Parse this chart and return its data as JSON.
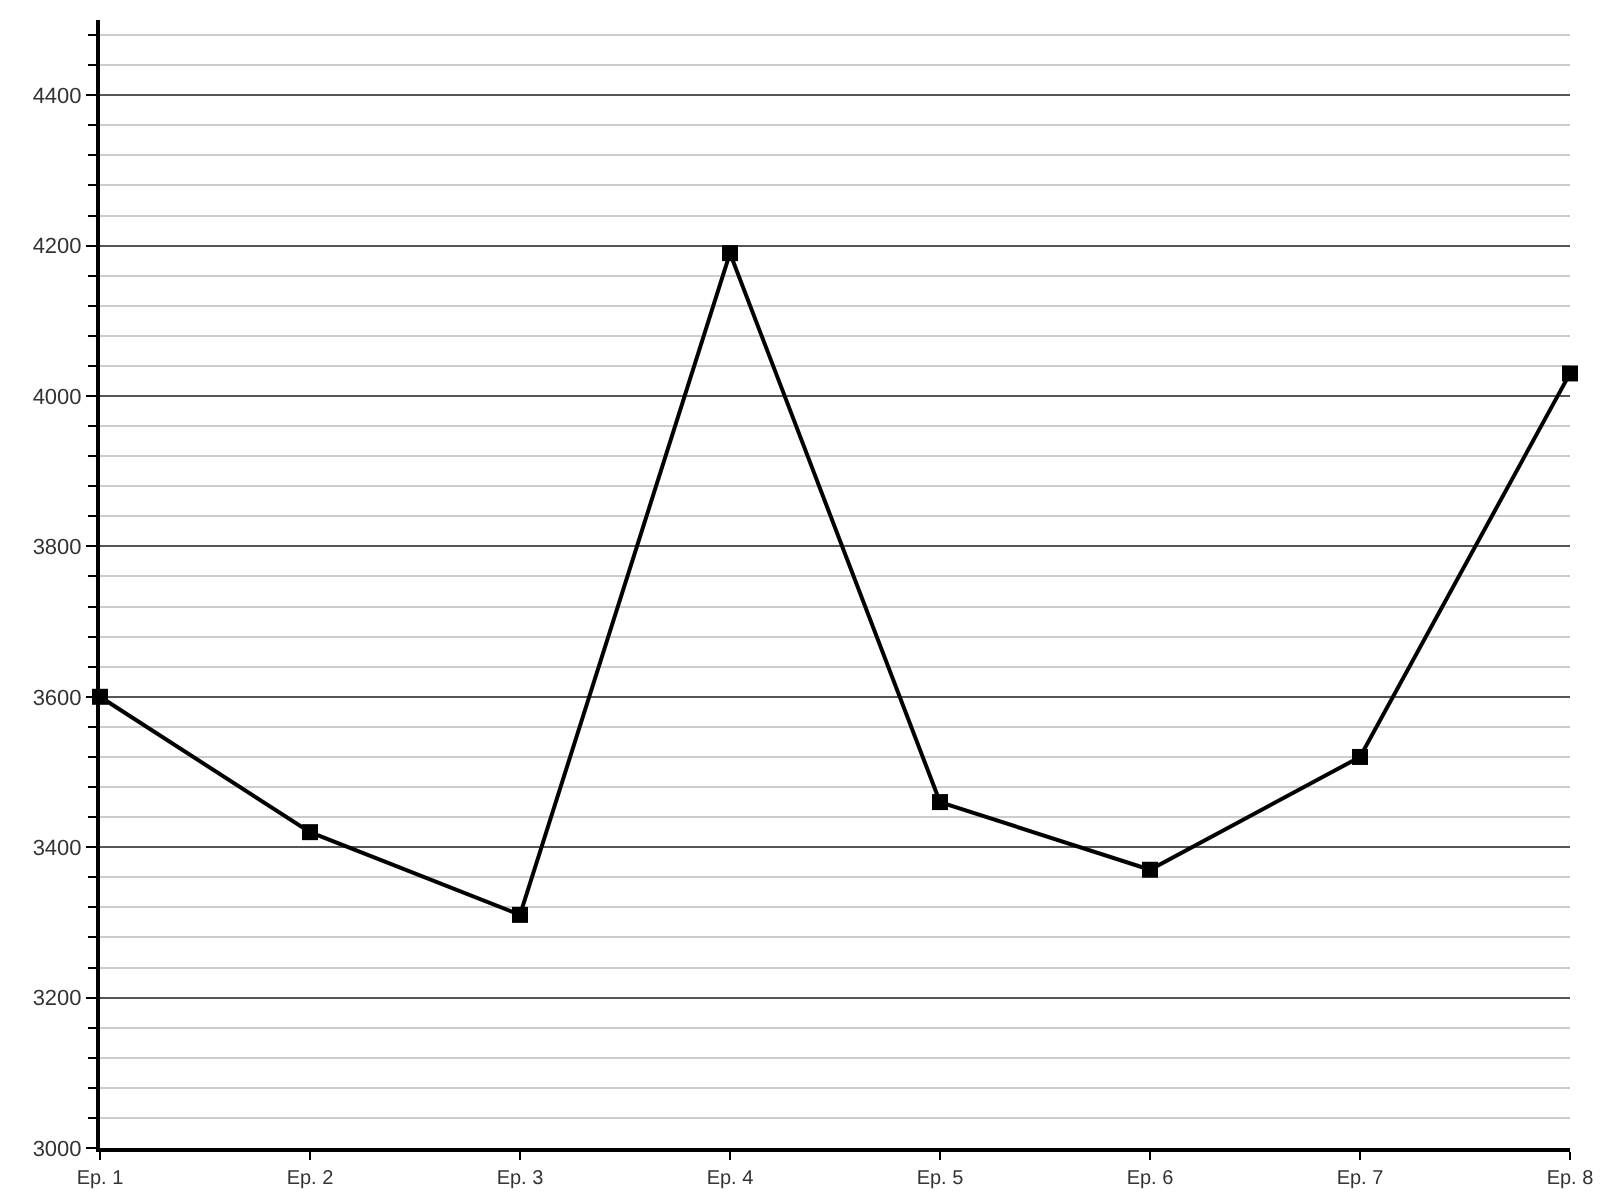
{
  "chart_data": {
    "type": "line",
    "categories": [
      "Ep. 1",
      "Ep. 2",
      "Ep. 3",
      "Ep. 4",
      "Ep. 5",
      "Ep. 6",
      "Ep. 7",
      "Ep. 8"
    ],
    "series": [
      {
        "color": "#000000",
        "values": [
          3600,
          3420,
          3310,
          4190,
          3460,
          3370,
          3520,
          4030
        ]
      }
    ],
    "ylim": [
      3000,
      4500
    ],
    "yticks": [
      3000,
      {
        "value": 3040,
        "label": null
      },
      {
        "value": 3080,
        "label": null
      },
      {
        "value": 3120,
        "label": null
      },
      {
        "value": 3160,
        "label": null
      },
      3200,
      {
        "value": 3240,
        "label": null
      },
      {
        "value": 3280,
        "label": null
      },
      {
        "value": 3320,
        "label": null
      },
      {
        "value": 3360,
        "label": null
      },
      3400,
      {
        "value": 3440,
        "label": null
      },
      {
        "value": 3480,
        "label": null
      },
      {
        "value": 3520,
        "label": null
      },
      {
        "value": 3560,
        "label": null
      },
      3600,
      {
        "value": 3640,
        "label": null
      },
      {
        "value": 3680,
        "label": null
      },
      {
        "value": 3720,
        "label": null
      },
      {
        "value": 3760,
        "label": null
      },
      3800,
      {
        "value": 3840,
        "label": null
      },
      {
        "value": 3880,
        "label": null
      },
      {
        "value": 3920,
        "label": null
      },
      {
        "value": 3960,
        "label": null
      },
      4000,
      {
        "value": 4040,
        "label": null
      },
      {
        "value": 4080,
        "label": null
      },
      {
        "value": 4120,
        "label": null
      },
      {
        "value": 4160,
        "label": null
      },
      4200,
      {
        "value": 4240,
        "label": null
      },
      {
        "value": 4280,
        "label": null
      },
      {
        "value": 4320,
        "label": null
      },
      {
        "value": 4360,
        "label": null
      },
      4400,
      {
        "value": 4440,
        "label": null
      },
      {
        "value": 4480,
        "label": null
      }
    ],
    "grid": "y",
    "marker": "square",
    "line_style": "solid"
  }
}
